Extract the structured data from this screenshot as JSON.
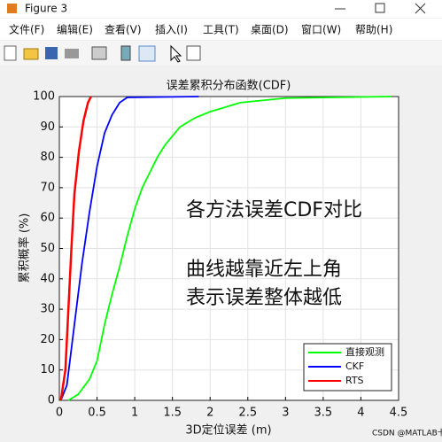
{
  "window": {
    "title": "Figure 3",
    "menu": [
      "文件(F)",
      "编辑(E)",
      "查看(V)",
      "插入(I)",
      "工具(T)",
      "桌面(D)",
      "窗口(W)",
      "帮助(H)"
    ]
  },
  "watermark": "CSDN @MATLAB卡尔曼",
  "chart_data": {
    "type": "line",
    "title": "误差累积分布函数(CDF)",
    "x_label": "3D定位误差 (m)",
    "y_label": "累积概率 (%)",
    "annotations": [
      "各方法误差CDF对比",
      "曲线越靠近左上角",
      "表示误差整体越低"
    ],
    "annotation_color": "#92d050",
    "xlim": [
      0,
      4.5
    ],
    "xticks": [
      0,
      0.5,
      1,
      1.5,
      2,
      2.5,
      3,
      3.5,
      4,
      4.5
    ],
    "ylim": [
      0,
      100
    ],
    "yticks": [
      0,
      10,
      20,
      30,
      40,
      50,
      60,
      70,
      80,
      90,
      100
    ],
    "grid": true,
    "legend": "lower-right",
    "series": [
      {
        "name": "直接观测",
        "color": "#00ff00",
        "x": [
          0.12,
          0.25,
          0.4,
          0.5,
          0.6,
          0.7,
          0.8,
          0.9,
          1.0,
          1.1,
          1.2,
          1.3,
          1.4,
          1.5,
          1.6,
          1.8,
          2.0,
          2.4,
          3.0,
          4.4
        ],
        "values": [
          0,
          2,
          7,
          13,
          25,
          35,
          44,
          54,
          63,
          70,
          75,
          80,
          84,
          87,
          90,
          93,
          95,
          98,
          99.5,
          100
        ]
      },
      {
        "name": "CKF",
        "color": "#0000ff",
        "x": [
          0.02,
          0.1,
          0.2,
          0.3,
          0.4,
          0.5,
          0.6,
          0.7,
          0.8,
          0.9,
          1.85
        ],
        "values": [
          0,
          5,
          25,
          45,
          62,
          77,
          88,
          94,
          98,
          99.7,
          100
        ]
      },
      {
        "name": "RTS",
        "color": "#ff0000",
        "x": [
          0.02,
          0.08,
          0.12,
          0.16,
          0.2,
          0.26,
          0.32,
          0.38,
          0.42
        ],
        "values": [
          0,
          10,
          30,
          50,
          68,
          82,
          92,
          98,
          100
        ]
      }
    ]
  }
}
